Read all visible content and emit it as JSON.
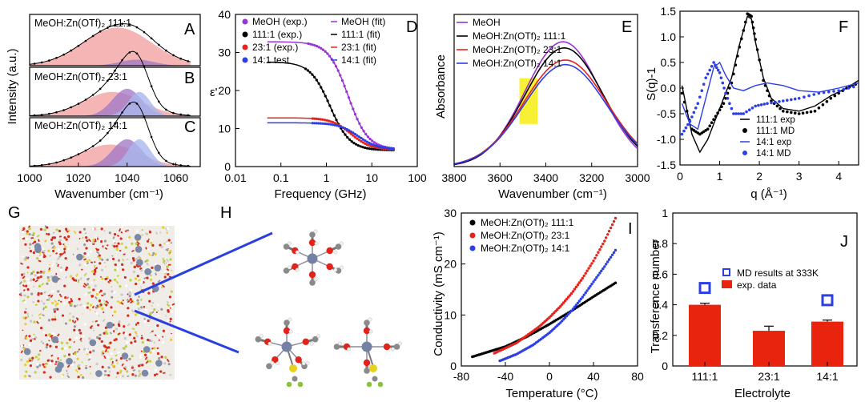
{
  "panels": {
    "A": {
      "letter": "A",
      "label": "MeOH:Zn(OTf)₂ 111:1"
    },
    "B": {
      "letter": "B",
      "label": "MeOH:Zn(OTf)₂ 23:1"
    },
    "C": {
      "letter": "C",
      "label": "MeOH:Zn(OTf)₂ 14:1"
    },
    "ylabel": "Intensity (a.u.)",
    "G": {
      "letter": "G"
    },
    "H": {
      "letter": "H"
    }
  },
  "colors": {
    "meoh": "#9a33d6",
    "r111": "#000000",
    "r23": "#e8211b",
    "r14": "#2c3fe6",
    "peak_pink": "#f4a3a3",
    "peak_purple": "#a47cc8",
    "peak_blue": "#a9b8ee",
    "highlight": "#f6ee1f",
    "bar_red": "#e8240f",
    "md_blue": "#2c3fe6"
  },
  "chart_data": [
    {
      "id": "ABC",
      "type": "area",
      "xlabel": "Wavenumber (cm⁻¹)",
      "xlim": [
        1000,
        1070
      ],
      "xticks": [
        1000,
        1020,
        1040,
        1060
      ],
      "subplots": [
        {
          "name": "111:1",
          "components": [
            {
              "name": "peak1",
              "center": 1036,
              "height": 0.82,
              "width": 14
            },
            {
              "name": "peak2",
              "center": 1044,
              "height": 0.13,
              "width": 7
            }
          ]
        },
        {
          "name": "23:1",
          "components": [
            {
              "name": "peak1",
              "center": 1034,
              "height": 0.55,
              "width": 12
            },
            {
              "name": "peak2",
              "center": 1040,
              "height": 0.62,
              "width": 6
            },
            {
              "name": "peak3",
              "center": 1045,
              "height": 0.55,
              "width": 4.5
            }
          ]
        },
        {
          "name": "14:1",
          "components": [
            {
              "name": "peak1",
              "center": 1033,
              "height": 0.5,
              "width": 12
            },
            {
              "name": "peak2",
              "center": 1040,
              "height": 0.62,
              "width": 6
            },
            {
              "name": "peak3",
              "center": 1045,
              "height": 0.62,
              "width": 4.5
            }
          ]
        }
      ]
    },
    {
      "id": "D",
      "letter": "D",
      "type": "line",
      "xlabel": "Frequency (GHz)",
      "ylabel": "ε'",
      "xscale": "log",
      "xlim": [
        0.01,
        100
      ],
      "ylim": [
        0,
        40
      ],
      "xtick_labels": [
        "0.01",
        "0.1",
        "1",
        "10",
        "100"
      ],
      "yticks": [
        0,
        10,
        20,
        30,
        40
      ],
      "legend": [
        {
          "label": "MeOH (exp.)",
          "marker": "dot",
          "series": "meoh"
        },
        {
          "label": "MeOH (fit)",
          "marker": "line",
          "series": "meoh"
        },
        {
          "label": "111:1 (exp.)",
          "marker": "dot",
          "series": "r111"
        },
        {
          "label": "111:1 (fit)",
          "marker": "line",
          "series": "r111"
        },
        {
          "label": "23:1 (exp.)",
          "marker": "dot",
          "series": "r23"
        },
        {
          "label": "23:1 (fit)",
          "marker": "line",
          "series": "r23"
        },
        {
          "label": "14:1 test",
          "marker": "dot",
          "series": "r14"
        },
        {
          "label": "14:1 (fit)",
          "marker": "line",
          "series": "r14"
        }
      ],
      "series": [
        {
          "name": "meoh",
          "eps_s": 32.8,
          "eps_inf": 4.5,
          "f_relax": 3.0,
          "exp_from": 0.4
        },
        {
          "name": "r111",
          "eps_s": 27.5,
          "eps_inf": 4.3,
          "f_relax": 1.2,
          "exp_from": 0.35
        },
        {
          "name": "r23",
          "eps_s": 12.8,
          "eps_inf": 4.4,
          "f_relax": 3.5,
          "exp_from": 0.5
        },
        {
          "name": "r14",
          "eps_s": 11.5,
          "eps_inf": 4.5,
          "f_relax": 5.0,
          "exp_from": 0.5
        }
      ],
      "x_range": [
        0.05,
        30
      ]
    },
    {
      "id": "E",
      "letter": "E",
      "type": "line",
      "xlabel": "Wavenumber (cm⁻¹)",
      "ylabel": "Absorbance",
      "xlim": [
        3800,
        3000
      ],
      "xticks": [
        3800,
        3600,
        3400,
        3200,
        3000
      ],
      "legend": [
        {
          "label": "MeOH",
          "series": "meoh"
        },
        {
          "label": "MeOH:Zn(OTf)₂ 111:1",
          "series": "r111"
        },
        {
          "label": "MeOH:Zn(OTf)₂ 23:1",
          "series": "r23"
        },
        {
          "label": "MeOH:Zn(OTf)₂ 14:1",
          "series": "r14"
        }
      ],
      "highlight": {
        "x_from": 3515,
        "x_to": 3435,
        "y_from": 0.28,
        "y_to": 0.58
      },
      "series": [
        {
          "name": "meoh",
          "center": 3325,
          "height": 0.82,
          "width": 165,
          "end": 0.22
        },
        {
          "name": "r111",
          "center": 3320,
          "height": 0.78,
          "width": 170,
          "end": 0.28
        },
        {
          "name": "r23",
          "center": 3315,
          "height": 0.7,
          "width": 180,
          "end": 0.32
        },
        {
          "name": "r14",
          "center": 3315,
          "height": 0.67,
          "width": 180,
          "end": 0.34
        }
      ]
    },
    {
      "id": "F",
      "letter": "F",
      "type": "line",
      "xlabel": "q (Å⁻¹)",
      "ylabel": "S(q)-1",
      "xlim": [
        0,
        4.5
      ],
      "ylim": [
        -1.5,
        1.5
      ],
      "xticks": [
        0,
        1,
        2,
        3,
        4
      ],
      "ytick_labels": [
        "-1.5",
        "-1.0",
        "-0.5",
        "0.0",
        "0.5",
        "1.0",
        "1.5"
      ],
      "legend": [
        {
          "label": "111:1 exp",
          "marker": "line",
          "series": "r111"
        },
        {
          "label": "111:1 MD",
          "marker": "dot",
          "series": "r111"
        },
        {
          "label": "14:1 exp",
          "marker": "line",
          "series": "r14"
        },
        {
          "label": "14:1 MD",
          "marker": "dot",
          "series": "r14"
        }
      ],
      "series": [
        {
          "name": "111:1 exp",
          "x": [
            0.05,
            0.3,
            0.5,
            0.7,
            0.9,
            1.1,
            1.3,
            1.5,
            1.7,
            1.8,
            1.9,
            2.1,
            2.3,
            2.6,
            3.0,
            3.4,
            3.8,
            4.2,
            4.5
          ],
          "y": [
            0.05,
            -0.9,
            -1.25,
            -1.0,
            -0.6,
            -0.2,
            0.2,
            0.85,
            1.4,
            1.35,
            0.9,
            0.2,
            -0.2,
            -0.4,
            -0.45,
            -0.35,
            -0.15,
            0.0,
            0.15
          ]
        },
        {
          "name": "111:1 MD",
          "x": [
            0.05,
            0.3,
            0.5,
            0.7,
            0.9,
            1.1,
            1.3,
            1.5,
            1.7,
            1.8,
            1.9,
            2.1,
            2.3,
            2.6,
            3.0,
            3.4,
            3.8,
            4.2,
            4.5
          ],
          "y": [
            -0.1,
            -0.8,
            -0.9,
            -0.8,
            -0.55,
            -0.3,
            0.1,
            0.8,
            1.45,
            1.4,
            0.95,
            0.15,
            -0.25,
            -0.45,
            -0.5,
            -0.45,
            -0.2,
            0.0,
            0.1
          ]
        },
        {
          "name": "14:1 exp",
          "x": [
            0.05,
            0.25,
            0.45,
            0.65,
            0.85,
            1.0,
            1.15,
            1.35,
            1.6,
            1.9,
            2.2,
            2.6,
            3.0,
            3.5,
            4.0,
            4.5
          ],
          "y": [
            -0.3,
            -0.7,
            -0.8,
            -0.2,
            0.4,
            0.5,
            0.25,
            0.0,
            -0.05,
            0.05,
            0.1,
            0.05,
            -0.05,
            -0.08,
            0.0,
            0.1
          ]
        },
        {
          "name": "14:1 MD",
          "x": [
            0.05,
            0.25,
            0.45,
            0.65,
            0.85,
            1.0,
            1.15,
            1.35,
            1.6,
            1.9,
            2.2,
            2.6,
            3.0,
            3.5,
            4.0,
            4.5
          ],
          "y": [
            -0.9,
            -0.65,
            -0.3,
            0.2,
            0.5,
            0.3,
            -0.1,
            -0.5,
            -0.5,
            -0.35,
            -0.3,
            -0.25,
            -0.2,
            -0.1,
            -0.05,
            0.05
          ]
        }
      ]
    },
    {
      "id": "I",
      "letter": "I",
      "type": "scatter",
      "xlabel": "Temperature (°C)",
      "ylabel": "Conductivity (mS cm⁻¹)",
      "xlim": [
        -80,
        80
      ],
      "ylim": [
        0,
        30
      ],
      "xticks": [
        -80,
        -40,
        0,
        40,
        80
      ],
      "yticks": [
        0,
        10,
        20,
        30
      ],
      "legend": [
        {
          "label": "MeOH:Zn(OTf)₂ 111:1",
          "series": "r111"
        },
        {
          "label": "MeOH:Zn(OTf)₂ 23:1",
          "series": "r23"
        },
        {
          "label": "MeOH:Zn(OTf)₂ 14:1",
          "series": "r14"
        }
      ],
      "series": [
        {
          "name": "r111",
          "x": [
            -70,
            -40,
            -20,
            0,
            20,
            40,
            60
          ],
          "y": [
            1.8,
            3.8,
            5.8,
            8.2,
            10.8,
            13.6,
            16.3
          ]
        },
        {
          "name": "r23",
          "x": [
            -50,
            -30,
            -10,
            0,
            10,
            20,
            30,
            40,
            50,
            60
          ],
          "y": [
            2.5,
            4.5,
            7.6,
            9.5,
            11.7,
            14.2,
            17.2,
            20.6,
            24.5,
            29.0
          ]
        },
        {
          "name": "r14",
          "x": [
            -45,
            -30,
            -15,
            0,
            10,
            20,
            30,
            40,
            50,
            60
          ],
          "y": [
            1.0,
            2.3,
            4.1,
            6.5,
            8.5,
            10.8,
            13.5,
            16.5,
            19.5,
            22.7
          ]
        }
      ]
    },
    {
      "id": "J",
      "letter": "J",
      "type": "bar",
      "xlabel": "Electrolyte",
      "ylabel": "Transference number",
      "categories": [
        "111:1",
        "23:1",
        "14:1"
      ],
      "values": [
        0.4,
        0.23,
        0.29
      ],
      "errors": [
        0.01,
        0.03,
        0.01
      ],
      "md_values": [
        0.51,
        null,
        0.43
      ],
      "ylim": [
        0,
        1.0
      ],
      "yticks": [
        "0",
        "0.2",
        "0.4",
        "0.6",
        "0.8",
        "1"
      ],
      "legend": [
        {
          "label": "MD results at 333K",
          "marker": "square"
        },
        {
          "label": "exp. data",
          "marker": "bar"
        }
      ]
    }
  ]
}
